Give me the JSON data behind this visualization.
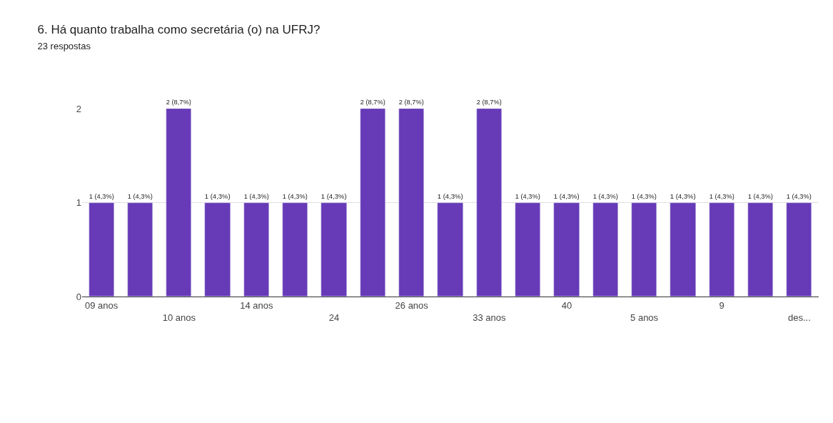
{
  "chart_data": {
    "type": "bar",
    "title": "6. Há quanto trabalha como secretária (o) na UFRJ?",
    "subtitle": "23 respostas",
    "categories": [
      "09 anos",
      null,
      "10 anos",
      null,
      "14 anos",
      null,
      "24",
      null,
      "26 anos",
      null,
      "33 anos",
      null,
      "40",
      null,
      "5 anos",
      null,
      "9",
      null,
      "des..."
    ],
    "values": [
      1,
      1,
      2,
      1,
      1,
      1,
      1,
      2,
      2,
      1,
      2,
      1,
      1,
      1,
      1,
      1,
      1,
      1,
      1
    ],
    "value_labels": [
      "1 (4,3%)",
      "1 (4,3%)",
      "2 (8,7%)",
      "1 (4,3%)",
      "1 (4,3%)",
      "1 (4,3%)",
      "1 (4,3%)",
      "2 (8,7%)",
      "2 (8,7%)",
      "1 (4,3%)",
      "2 (8,7%)",
      "1 (4,3%)",
      "1 (4,3%)",
      "1 (4,3%)",
      "1 (4,3%)",
      "1 (4,3%)",
      "1 (4,3%)",
      "1 (4,3%)",
      "1 (4,3%)"
    ],
    "color": "#673ab7",
    "ylim": [
      0,
      2
    ],
    "yticks": [
      0,
      1,
      2
    ],
    "grid": "y",
    "legend": false
  }
}
